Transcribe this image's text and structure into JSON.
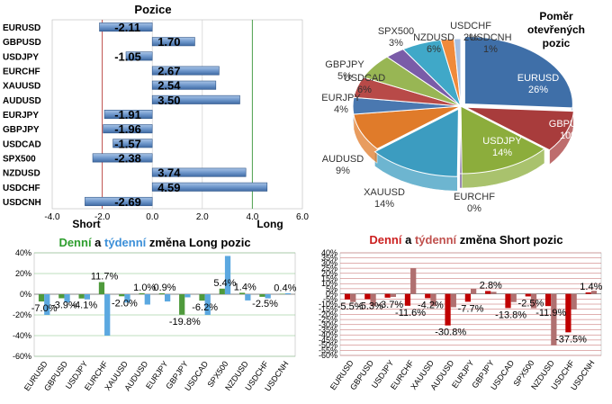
{
  "chart_data": [
    {
      "type": "bar",
      "orientation": "horizontal",
      "title": "Pozice",
      "categories": [
        "EURUSD",
        "GBPUSD",
        "USDJPY",
        "EURCHF",
        "XAUUSD",
        "AUDUSD",
        "EURJPY",
        "GBPJPY",
        "USDCAD",
        "SPX500",
        "NZDUSD",
        "USDCHF",
        "USDCNH"
      ],
      "values": [
        -2.11,
        1.7,
        -1.05,
        2.67,
        2.54,
        3.5,
        -1.91,
        -1.96,
        -1.57,
        -2.38,
        3.74,
        4.59,
        -2.69
      ],
      "value_labels": [
        "-2.11",
        "1.70",
        "-1.05",
        "2.67",
        "2.54",
        "3.50",
        "-1.91",
        "-1.96",
        "-1.57",
        "-2.38",
        "3.74",
        "4.59",
        "-2.69"
      ],
      "xlim": [
        -4.0,
        6.0
      ],
      "xticks": [
        "-4.0",
        "-2.0",
        "0.0",
        "2.0",
        "4.0",
        "6.0"
      ],
      "zone_labels": {
        "short": "Short",
        "long": "Long"
      },
      "colors": {
        "bar": "#6f98cc",
        "short_line": "#c0504d",
        "long_line": "#4ea24e"
      }
    },
    {
      "type": "pie",
      "title_lines": [
        "Poměr",
        "otevřených",
        "pozic"
      ],
      "slices": [
        {
          "label": "EURUSD",
          "pct": "26%",
          "value": 26,
          "color": "#3f6fa8"
        },
        {
          "label": "GBPUSD",
          "pct": "10%",
          "value": 10,
          "color": "#a83c3c"
        },
        {
          "label": "USDJPY",
          "pct": "14%",
          "value": 14,
          "color": "#8cad3c"
        },
        {
          "label": "EURCHF",
          "pct": "0%",
          "value": 0,
          "color": "#6a4c93"
        },
        {
          "label": "XAUUSD",
          "pct": "14%",
          "value": 14,
          "color": "#3c9cc0"
        },
        {
          "label": "AUDUSD",
          "pct": "9%",
          "value": 9,
          "color": "#e07b2a"
        },
        {
          "label": "EURJPY",
          "pct": "4%",
          "value": 4,
          "color": "#4a78b0"
        },
        {
          "label": "GBPJPY",
          "pct": "5%",
          "value": 5,
          "color": "#b84a48"
        },
        {
          "label": "USDCAD",
          "pct": "6%",
          "value": 6,
          "color": "#98b654"
        },
        {
          "label": "SPX500",
          "pct": "3%",
          "value": 3,
          "color": "#7a5ca8"
        },
        {
          "label": "NZDUSD",
          "pct": "6%",
          "value": 6,
          "color": "#40a8c8"
        },
        {
          "label": "USDCHF",
          "pct": "2%",
          "value": 2,
          "color": "#f08a3a"
        },
        {
          "label": "USDCNH",
          "pct": "1%",
          "value": 1,
          "color": "#a8c0e0"
        }
      ]
    },
    {
      "type": "bar",
      "title_parts": [
        {
          "text": "Denní",
          "color": "#2e9e2e"
        },
        {
          "text": " a ",
          "color": "#000000"
        },
        {
          "text": "týdenní",
          "color": "#3b8fd8"
        },
        {
          "text": " změna Long pozic",
          "color": "#000000"
        }
      ],
      "categories": [
        "EURUSD",
        "GBPUSD",
        "USDJPY",
        "EURCHF",
        "XAUUSD",
        "AUDUSD",
        "EURJPY",
        "GBPJPY",
        "USDCAD",
        "SPX500",
        "NZDUSD",
        "USDCHF",
        "USDCNH"
      ],
      "series": [
        {
          "name": "Denní",
          "color": "#4f9a3c",
          "values": [
            -7.0,
            -3.9,
            -4.1,
            11.7,
            -2.0,
            1.0,
            0.9,
            -19.8,
            -6.2,
            5.4,
            1.4,
            -2.5,
            0.4
          ]
        },
        {
          "name": "Týdenní",
          "color": "#5ba8e0",
          "values": [
            -20.0,
            -8.0,
            -5.0,
            -40.0,
            -8.0,
            -10.0,
            -7.0,
            -3.0,
            -20.0,
            37.0,
            -6.0,
            -4.0,
            1.0
          ]
        }
      ],
      "data_labels": [
        "-7.0%",
        "-3.9%",
        "-4.1%",
        "11.7%",
        "-2.0%",
        "1.0%",
        "0.9%",
        "-19.8%",
        "-6.2%",
        "5.4%",
        "1.4%",
        "-2.5%",
        "0.4%"
      ],
      "ylim": [
        -60,
        40
      ],
      "yticks": [
        "40%",
        "20%",
        "0%",
        "-20%",
        "-40%",
        "-60%"
      ]
    },
    {
      "type": "bar",
      "title_parts": [
        {
          "text": "Denní",
          "color": "#cc2020"
        },
        {
          "text": " a ",
          "color": "#000000"
        },
        {
          "text": "týdenní",
          "color": "#c0504d"
        },
        {
          "text": " změna Short pozic",
          "color": "#000000"
        }
      ],
      "categories": [
        "EURUSD",
        "GBPUSD",
        "USDJPY",
        "EURCHF",
        "XAUUSD",
        "AUDUSD",
        "EURJPY",
        "GBPJPY",
        "USDCAD",
        "SPX500",
        "NZDUSD",
        "USDCHF",
        "USDCNH"
      ],
      "series": [
        {
          "name": "Denní",
          "color": "#c00000",
          "values": [
            -5.5,
            -5.3,
            -3.7,
            -11.6,
            -4.2,
            -30.8,
            -7.7,
            2.8,
            -13.8,
            -2.5,
            -11.9,
            -37.5,
            1.4
          ]
        },
        {
          "name": "Týdenní",
          "color": "#b07070",
          "values": [
            -8.0,
            -12.0,
            -3.0,
            25.0,
            -12.0,
            -13.0,
            5.0,
            2.0,
            -8.0,
            -14.0,
            -50.0,
            -15.0,
            3.0
          ]
        }
      ],
      "data_labels": [
        "-5.5%",
        "-5.3%",
        "-3.7%",
        "-11.6%",
        "-4.2%",
        "-30.8%",
        "-7.7%",
        "2.8%",
        "-13.8%",
        "-2.5%",
        "-11.9%",
        "-37.5%",
        "1.4%"
      ],
      "ylim": [
        -60,
        40
      ],
      "yticks": [
        "40%",
        "35%",
        "30%",
        "25%",
        "20%",
        "15%",
        "10%",
        "5%",
        "0%",
        "-5%",
        "-10%",
        "-15%",
        "-20%",
        "-25%",
        "-30%",
        "-35%",
        "-40%",
        "-45%",
        "-50%",
        "-55%",
        "-60%"
      ]
    }
  ]
}
